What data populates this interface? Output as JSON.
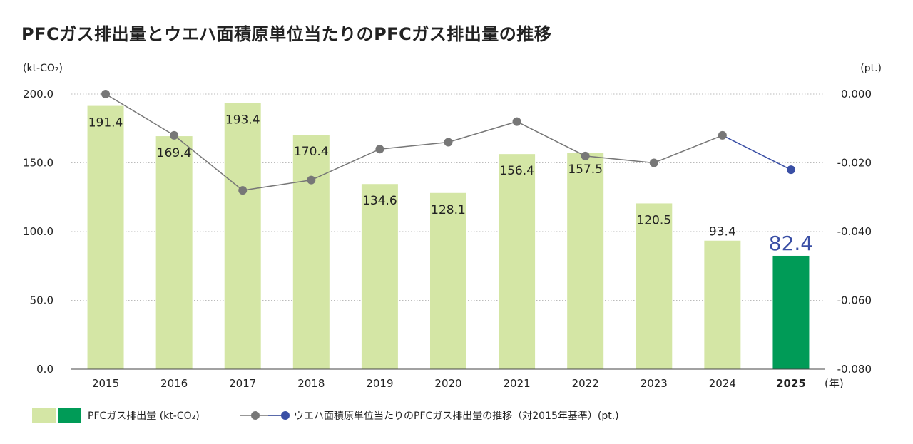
{
  "title": "PFCガス排出量とウエハ面積原単位当たりのPFCガス排出量の推移",
  "colors": {
    "bar": "#d4e6a5",
    "bar_highlight": "#009b57",
    "line": "#777777",
    "line_highlight": "#3a4fa5",
    "grid": "#bbbbbb",
    "axis": "#444444"
  },
  "chart_data": {
    "type": "bar",
    "title": "PFCガス排出量とウエハ面積原単位当たりのPFCガス排出量の推移",
    "left_unit": "(kt-CO₂)",
    "right_unit": "(pt.)",
    "x_unit": "(年)",
    "categories": [
      "2015",
      "2016",
      "2017",
      "2018",
      "2019",
      "2020",
      "2021",
      "2022",
      "2023",
      "2024",
      "2025"
    ],
    "highlight_index": 10,
    "ylim": [
      0,
      200
    ],
    "y_ticks": [
      "200.0",
      "150.0",
      "100.0",
      "50.0",
      "0.0"
    ],
    "y2lim": [
      -0.08,
      0
    ],
    "y2_ticks": [
      "0.000",
      "-0.020",
      "-0.040",
      "-0.060",
      "-0.080"
    ],
    "grid": true,
    "series": [
      {
        "name": "PFCガス排出量 (kt-CO₂)",
        "kind": "bar",
        "axis": "left",
        "values": [
          191.4,
          169.4,
          193.4,
          170.4,
          134.6,
          128.1,
          156.4,
          157.5,
          120.5,
          93.4,
          82.4
        ],
        "labels": [
          "191.4",
          "169.4",
          "193.4",
          "170.4",
          "134.6",
          "128.1",
          "156.4",
          "157.5",
          "120.5",
          "93.4",
          "82.4"
        ]
      },
      {
        "name": "ウエハ面積原単位当たりのPFCガス排出量の推移（対2015年基準）(pt.)",
        "kind": "line",
        "axis": "right",
        "values": [
          0.0,
          -0.012,
          -0.028,
          -0.025,
          -0.016,
          -0.014,
          -0.008,
          -0.018,
          -0.02,
          -0.012,
          -0.022
        ]
      }
    ],
    "legend": {
      "position": "bottom-left",
      "bar_label": "PFCガス排出量 (kt-CO₂)",
      "line_label": "ウエハ面積原単位当たりのPFCガス排出量の推移（対2015年基準）(pt.)"
    }
  }
}
